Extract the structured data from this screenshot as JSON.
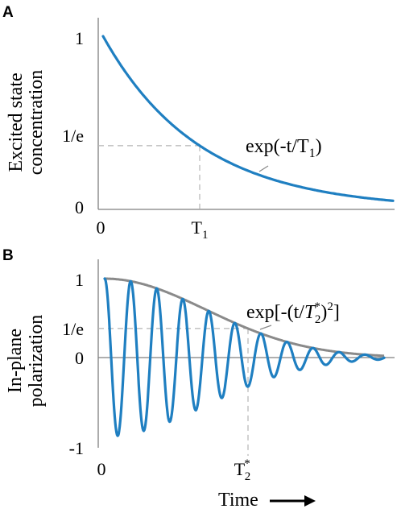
{
  "colors": {
    "decay": "#1f7fc1",
    "oscillation": "#1f7fc1",
    "envelope": "#8a8a8a",
    "axis": "#7f7f7f",
    "guide": "#b3b3b3"
  },
  "chart_data": [
    {
      "panel": "A",
      "type": "line",
      "ylabel_lines": [
        "Excited state",
        "concentration"
      ],
      "xlabel": "",
      "y_ticks": [
        "1",
        "1/e",
        "0"
      ],
      "x_ticks": [
        "0",
        "T1"
      ],
      "x_tick_T1": {
        "base": "T",
        "sub": "1"
      },
      "annotation": {
        "text": "exp(-t/T",
        "sub": "1",
        "tail": ")"
      },
      "T1": 1,
      "xlim": [
        0,
        3.0
      ],
      "ylim": [
        0,
        1
      ],
      "grid": false,
      "series": [
        {
          "x_start": 0,
          "x_end": 3.0,
          "function": "exp(-t/T1)"
        }
      ]
    },
    {
      "panel": "B",
      "type": "line",
      "ylabel_lines": [
        "In-plane",
        "polarization"
      ],
      "xlabel": "Time",
      "y_ticks": [
        "1",
        "1/e",
        "0",
        "-1"
      ],
      "x_ticks": [
        "0",
        "T2*"
      ],
      "x_tick_T2": {
        "base": "T",
        "sub": "2",
        "sup": "*"
      },
      "annotation": {
        "text": "exp[-(t/",
        "base": "T",
        "sub": "2",
        "sup": "*",
        "tail": ")",
        "pow": "2",
        "close": "]"
      },
      "T2star": 1,
      "xlim": [
        0,
        1.95
      ],
      "ylim": [
        -1,
        1
      ],
      "grid": false,
      "periods_per_T2": 5.5,
      "series": [
        {
          "x_start": 0,
          "x_end": 1.95,
          "function": "exp(-(t/T2*)^2)"
        },
        {
          "x_start": 0,
          "x_end": 1.95,
          "function": "exp(-(t/T2*)^2) * cos(2*pi*t*periods)"
        }
      ]
    }
  ]
}
